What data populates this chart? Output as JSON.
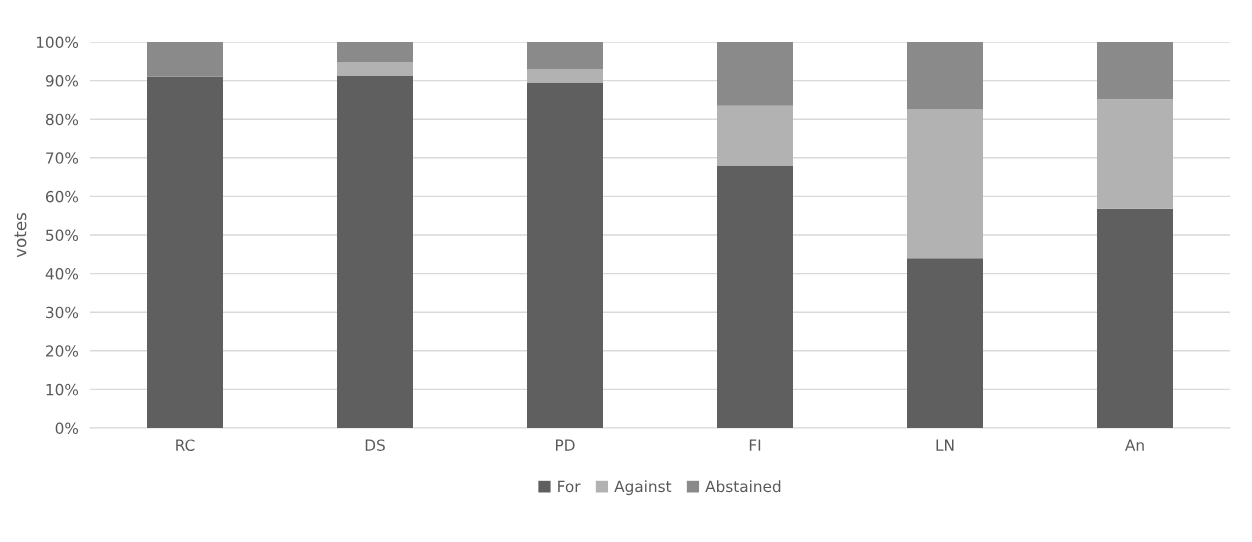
{
  "chart_data": {
    "type": "bar",
    "stacked": true,
    "ylabel": "votes",
    "categories": [
      "RC",
      "DS",
      "PD",
      "FI",
      "LN",
      "An"
    ],
    "series": [
      {
        "name": "For",
        "color": "#5f5f5f",
        "values": [
          91,
          91.3,
          89.5,
          68,
          44,
          56.8
        ]
      },
      {
        "name": "Against",
        "color": "#b2b2b2",
        "values": [
          0,
          3.5,
          3.5,
          15.5,
          38.5,
          28.4
        ]
      },
      {
        "name": "Abstained",
        "color": "#8a8a8a",
        "values": [
          9,
          5.2,
          7,
          16.5,
          17.5,
          14.8
        ]
      }
    ],
    "ylim": [
      0,
      100
    ],
    "yticks": [
      {
        "value": 0,
        "label": "0%"
      },
      {
        "value": 10,
        "label": "10%"
      },
      {
        "value": 20,
        "label": "20%"
      },
      {
        "value": 30,
        "label": "30%"
      },
      {
        "value": 40,
        "label": "40%"
      },
      {
        "value": 50,
        "label": "50%"
      },
      {
        "value": 60,
        "label": "60%"
      },
      {
        "value": 70,
        "label": "70%"
      },
      {
        "value": 80,
        "label": "80%"
      },
      {
        "value": 90,
        "label": "90%"
      },
      {
        "value": 100,
        "label": "100%"
      }
    ],
    "grid": "y",
    "legend": "bottom"
  }
}
